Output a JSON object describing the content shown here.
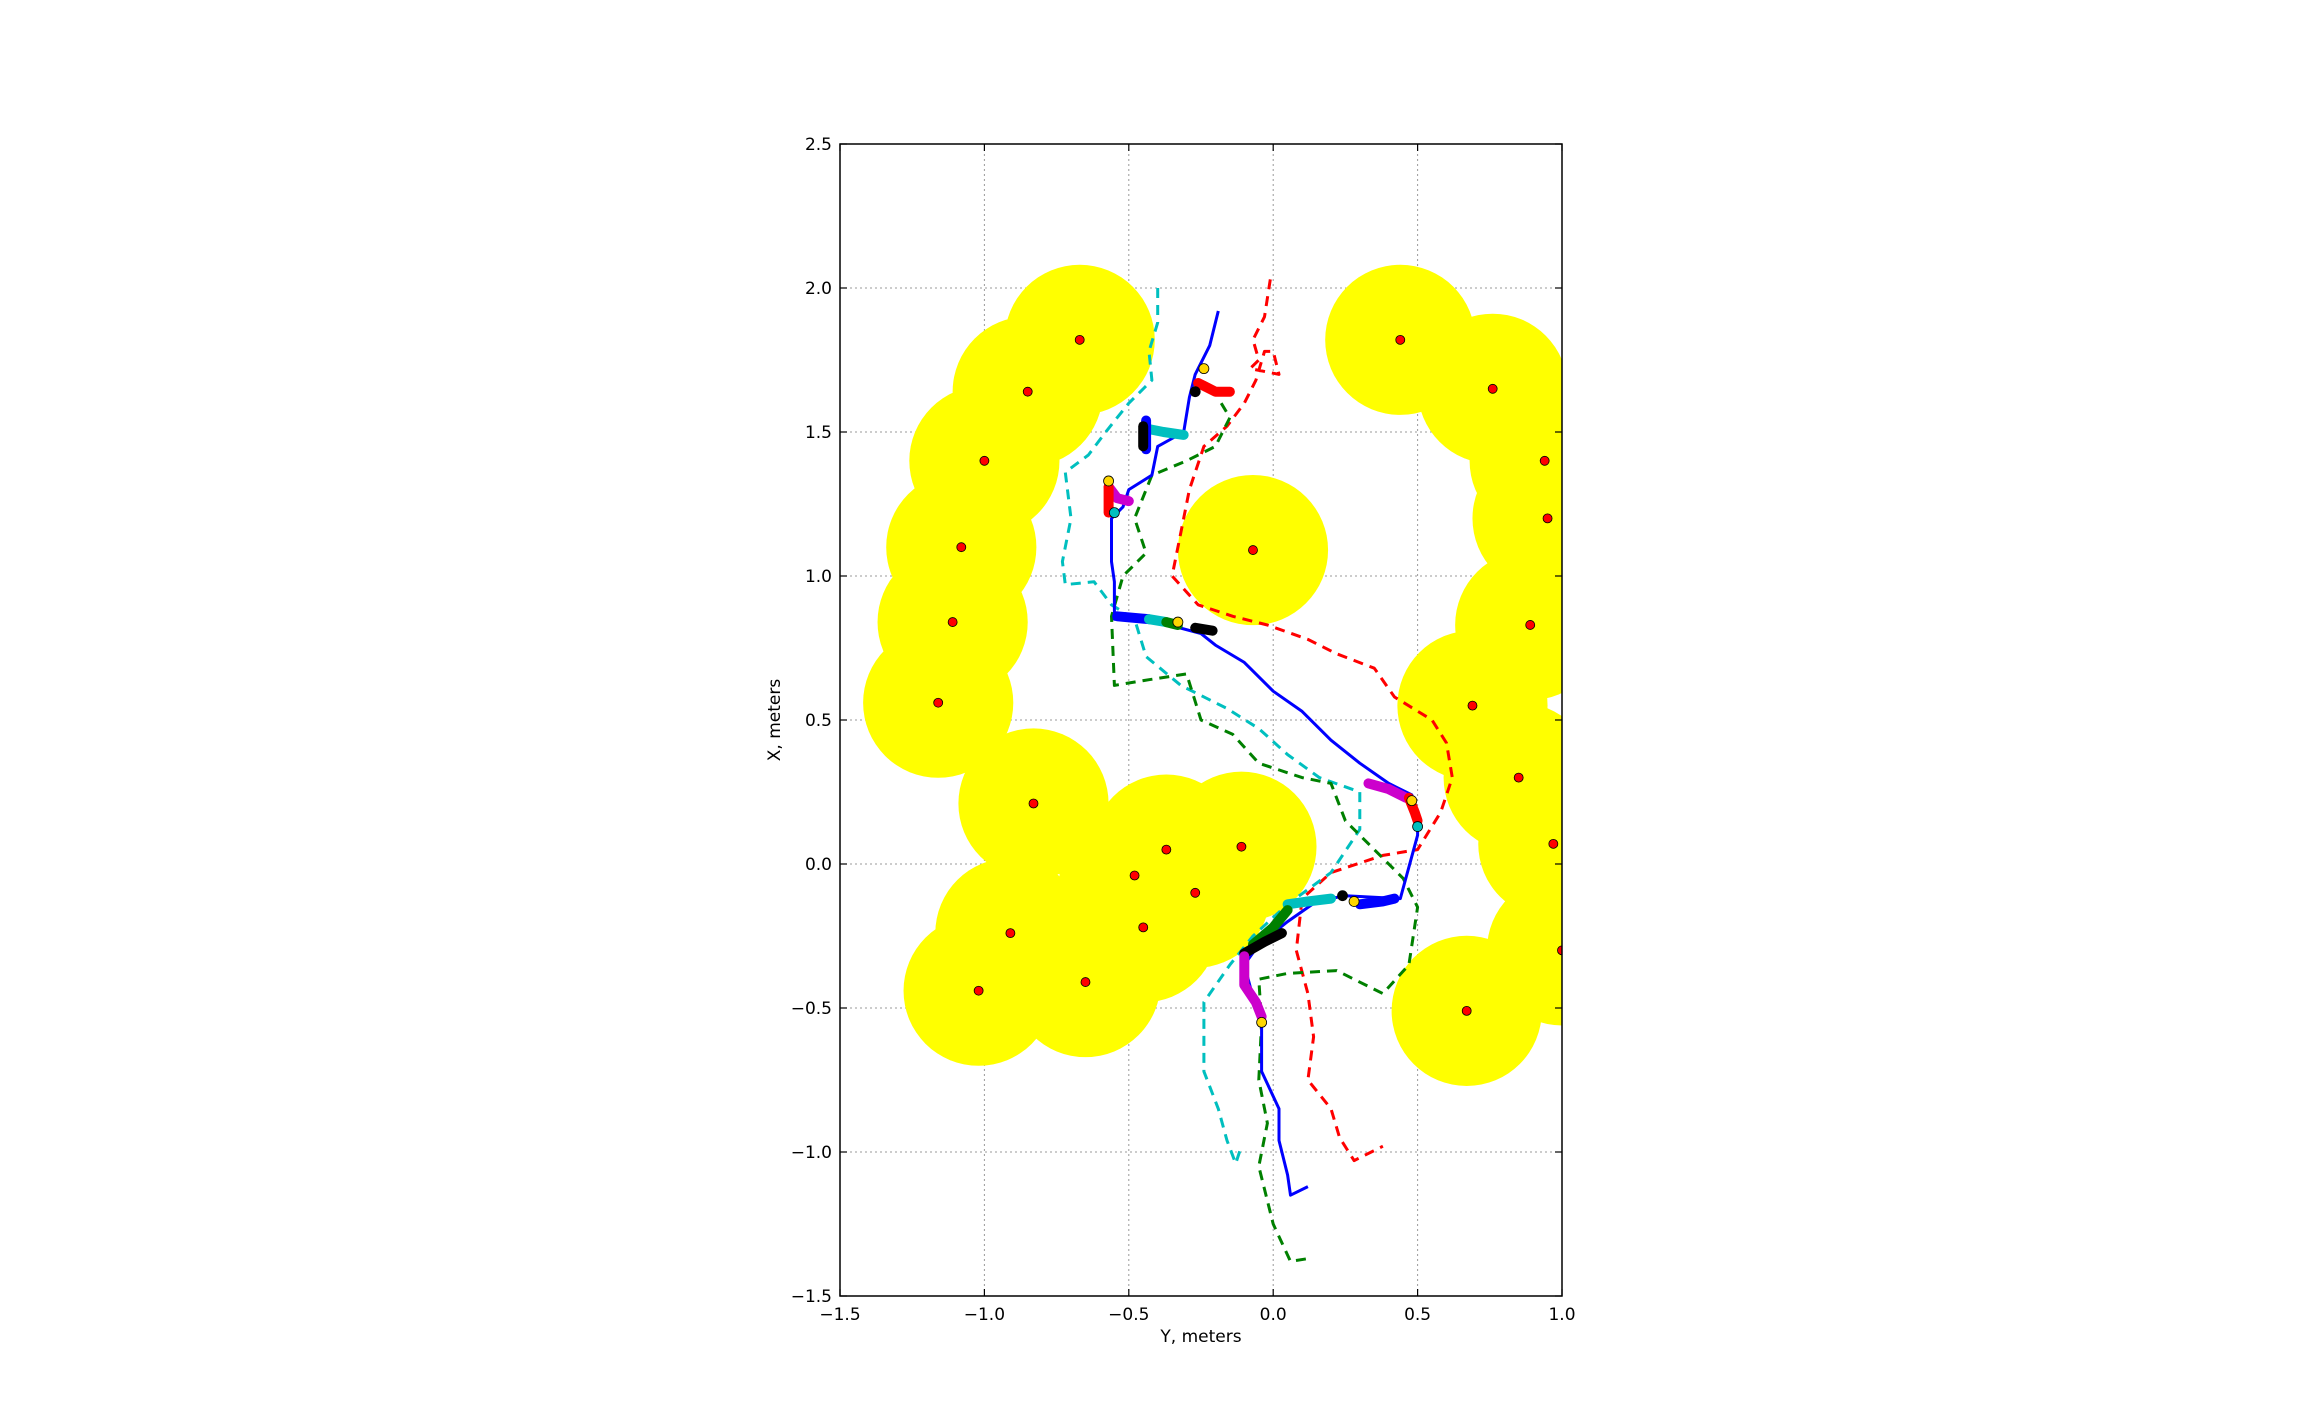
{
  "chart_data": {
    "type": "scatter",
    "xlabel": "Y, meters",
    "ylabel": "X, meters",
    "xlim": [
      -1.5,
      1.0
    ],
    "ylim": [
      -1.5,
      2.5
    ],
    "xticks": [
      -1.5,
      -1.0,
      -0.5,
      0.0,
      0.5,
      1.0
    ],
    "xtick_labels": [
      "−1.5",
      "−1.0",
      "−0.5",
      "0.0",
      "0.5",
      "1.0"
    ],
    "yticks": [
      -1.5,
      -1.0,
      -0.5,
      0.0,
      0.5,
      1.0,
      1.5,
      2.0,
      2.5
    ],
    "ytick_labels": [
      "−1.5",
      "−1.0",
      "−0.5",
      "0.0",
      "0.5",
      "1.0",
      "1.5",
      "2.0",
      "2.5"
    ],
    "grid": true,
    "obstacle_radius": 0.26,
    "obstacle_fill": "#ffff00",
    "obstacle_center_color": "#ff0000",
    "obstacles": [
      [
        -0.67,
        1.82
      ],
      [
        -0.85,
        1.64
      ],
      [
        -1.0,
        1.4
      ],
      [
        -1.08,
        1.1
      ],
      [
        -1.11,
        0.84
      ],
      [
        -1.16,
        0.56
      ],
      [
        -0.83,
        0.21
      ],
      [
        -0.37,
        0.05
      ],
      [
        -0.11,
        0.06
      ],
      [
        -0.48,
        -0.04
      ],
      [
        -0.27,
        -0.1
      ],
      [
        -0.91,
        -0.24
      ],
      [
        -0.45,
        -0.22
      ],
      [
        -1.02,
        -0.44
      ],
      [
        -0.65,
        -0.41
      ],
      [
        -0.07,
        1.09
      ],
      [
        0.44,
        1.82
      ],
      [
        0.76,
        1.65
      ],
      [
        0.94,
        1.4
      ],
      [
        0.95,
        1.2
      ],
      [
        0.89,
        0.83
      ],
      [
        0.69,
        0.55
      ],
      [
        0.85,
        0.3
      ],
      [
        0.97,
        0.07
      ],
      [
        1.0,
        -0.3
      ],
      [
        0.67,
        -0.51
      ]
    ],
    "series": [
      {
        "style": "dashed",
        "color": "#ff0000",
        "points": [
          [
            -0.01,
            2.03
          ],
          [
            -0.03,
            1.9
          ],
          [
            -0.07,
            1.82
          ],
          [
            -0.05,
            1.75
          ],
          [
            -0.08,
            1.72
          ],
          [
            0.02,
            1.7
          ],
          [
            0.0,
            1.78
          ],
          [
            -0.03,
            1.78
          ],
          [
            -0.06,
            1.68
          ],
          [
            -0.1,
            1.6
          ],
          [
            -0.16,
            1.52
          ],
          [
            -0.24,
            1.45
          ],
          [
            -0.29,
            1.3
          ],
          [
            -0.32,
            1.15
          ],
          [
            -0.35,
            1.0
          ],
          [
            -0.26,
            0.9
          ],
          [
            -0.14,
            0.86
          ],
          [
            -0.02,
            0.83
          ],
          [
            0.12,
            0.78
          ],
          [
            0.22,
            0.73
          ],
          [
            0.35,
            0.68
          ],
          [
            0.42,
            0.58
          ],
          [
            0.55,
            0.5
          ],
          [
            0.6,
            0.42
          ],
          [
            0.62,
            0.3
          ],
          [
            0.58,
            0.18
          ],
          [
            0.5,
            0.05
          ],
          [
            0.38,
            0.03
          ],
          [
            0.2,
            -0.03
          ],
          [
            0.1,
            -0.12
          ],
          [
            0.08,
            -0.3
          ],
          [
            0.12,
            -0.45
          ],
          [
            0.14,
            -0.6
          ],
          [
            0.12,
            -0.75
          ],
          [
            0.2,
            -0.85
          ],
          [
            0.23,
            -0.95
          ],
          [
            0.28,
            -1.03
          ],
          [
            0.38,
            -0.98
          ]
        ]
      },
      {
        "style": "dashed",
        "color": "#00bfbf",
        "points": [
          [
            -0.4,
            2.0
          ],
          [
            -0.4,
            1.88
          ],
          [
            -0.43,
            1.78
          ],
          [
            -0.42,
            1.68
          ],
          [
            -0.5,
            1.6
          ],
          [
            -0.58,
            1.5
          ],
          [
            -0.64,
            1.42
          ],
          [
            -0.72,
            1.36
          ],
          [
            -0.7,
            1.2
          ],
          [
            -0.73,
            1.05
          ],
          [
            -0.72,
            0.97
          ],
          [
            -0.62,
            0.98
          ],
          [
            -0.56,
            0.9
          ],
          [
            -0.48,
            0.85
          ],
          [
            -0.44,
            0.72
          ],
          [
            -0.32,
            0.62
          ],
          [
            -0.16,
            0.54
          ],
          [
            -0.05,
            0.47
          ],
          [
            0.05,
            0.38
          ],
          [
            0.16,
            0.3
          ],
          [
            0.3,
            0.25
          ],
          [
            0.3,
            0.12
          ],
          [
            0.2,
            -0.03
          ],
          [
            0.05,
            -0.14
          ],
          [
            -0.07,
            -0.25
          ],
          [
            -0.15,
            -0.35
          ],
          [
            -0.24,
            -0.48
          ],
          [
            -0.24,
            -0.72
          ],
          [
            -0.19,
            -0.85
          ],
          [
            -0.16,
            -0.96
          ],
          [
            -0.13,
            -1.04
          ],
          [
            -0.11,
            -0.98
          ]
        ]
      },
      {
        "style": "dashed",
        "color": "#008000",
        "points": [
          [
            -0.18,
            1.6
          ],
          [
            -0.15,
            1.55
          ],
          [
            -0.2,
            1.45
          ],
          [
            -0.3,
            1.4
          ],
          [
            -0.42,
            1.35
          ],
          [
            -0.48,
            1.2
          ],
          [
            -0.44,
            1.08
          ],
          [
            -0.52,
            1.0
          ],
          [
            -0.56,
            0.86
          ],
          [
            -0.55,
            0.62
          ],
          [
            -0.43,
            0.64
          ],
          [
            -0.3,
            0.66
          ],
          [
            -0.25,
            0.5
          ],
          [
            -0.14,
            0.45
          ],
          [
            -0.05,
            0.35
          ],
          [
            0.1,
            0.3
          ],
          [
            0.2,
            0.28
          ],
          [
            0.25,
            0.15
          ],
          [
            0.35,
            0.05
          ],
          [
            0.45,
            -0.05
          ],
          [
            0.5,
            -0.15
          ],
          [
            0.47,
            -0.35
          ],
          [
            0.38,
            -0.45
          ],
          [
            0.22,
            -0.37
          ],
          [
            0.05,
            -0.38
          ],
          [
            -0.05,
            -0.4
          ],
          [
            -0.04,
            -0.55
          ],
          [
            -0.05,
            -0.75
          ],
          [
            -0.02,
            -0.9
          ],
          [
            -0.05,
            -1.05
          ],
          [
            0.0,
            -1.25
          ],
          [
            0.06,
            -1.38
          ],
          [
            0.12,
            -1.37
          ]
        ]
      },
      {
        "style": "solid",
        "color": "#0000ff",
        "points": [
          [
            -0.19,
            1.92
          ],
          [
            -0.22,
            1.8
          ],
          [
            -0.27,
            1.7
          ],
          [
            -0.29,
            1.62
          ],
          [
            -0.31,
            1.5
          ],
          [
            -0.4,
            1.45
          ],
          [
            -0.42,
            1.35
          ],
          [
            -0.5,
            1.3
          ],
          [
            -0.52,
            1.24
          ],
          [
            -0.56,
            1.2
          ],
          [
            -0.56,
            1.05
          ],
          [
            -0.55,
            0.98
          ],
          [
            -0.55,
            0.85
          ],
          [
            -0.48,
            0.85
          ],
          [
            -0.36,
            0.83
          ],
          [
            -0.25,
            0.8
          ],
          [
            -0.2,
            0.76
          ],
          [
            -0.1,
            0.7
          ],
          [
            0.0,
            0.6
          ],
          [
            0.1,
            0.53
          ],
          [
            0.2,
            0.43
          ],
          [
            0.3,
            0.35
          ],
          [
            0.4,
            0.28
          ],
          [
            0.48,
            0.24
          ],
          [
            0.5,
            0.18
          ],
          [
            0.5,
            0.1
          ],
          [
            0.44,
            -0.12
          ],
          [
            0.25,
            -0.11
          ],
          [
            0.15,
            -0.13
          ],
          [
            0.05,
            -0.2
          ],
          [
            -0.05,
            -0.28
          ],
          [
            -0.1,
            -0.35
          ],
          [
            -0.06,
            -0.5
          ],
          [
            -0.04,
            -0.55
          ],
          [
            -0.04,
            -0.72
          ],
          [
            0.02,
            -0.85
          ],
          [
            0.02,
            -0.96
          ],
          [
            0.05,
            -1.08
          ],
          [
            0.06,
            -1.15
          ],
          [
            0.12,
            -1.12
          ]
        ]
      }
    ],
    "highlight_segments": [
      {
        "color": "#ff0000",
        "points": [
          [
            -0.26,
            1.67
          ],
          [
            -0.24,
            1.66
          ],
          [
            -0.2,
            1.64
          ],
          [
            -0.15,
            1.64
          ]
        ]
      },
      {
        "color": "#00bfbf",
        "points": [
          [
            -0.43,
            1.51
          ],
          [
            -0.38,
            1.5
          ],
          [
            -0.31,
            1.49
          ]
        ]
      },
      {
        "color": "#0000ff",
        "points": [
          [
            -0.44,
            1.54
          ],
          [
            -0.44,
            1.44
          ]
        ]
      },
      {
        "color": "#000000",
        "points": [
          [
            -0.45,
            1.52
          ],
          [
            -0.45,
            1.45
          ]
        ]
      },
      {
        "color": "#cc00cc",
        "points": [
          [
            -0.57,
            1.31
          ],
          [
            -0.54,
            1.27
          ],
          [
            -0.5,
            1.26
          ]
        ]
      },
      {
        "color": "#ff0000",
        "points": [
          [
            -0.57,
            1.31
          ],
          [
            -0.57,
            1.22
          ]
        ]
      },
      {
        "color": "#0000ff",
        "points": [
          [
            -0.54,
            0.86
          ],
          [
            -0.43,
            0.85
          ]
        ]
      },
      {
        "color": "#00bfbf",
        "points": [
          [
            -0.43,
            0.85
          ],
          [
            -0.37,
            0.84
          ]
        ]
      },
      {
        "color": "#008000",
        "points": [
          [
            -0.37,
            0.84
          ],
          [
            -0.33,
            0.83
          ]
        ]
      },
      {
        "color": "#000000",
        "points": [
          [
            -0.27,
            0.82
          ],
          [
            -0.21,
            0.81
          ]
        ]
      },
      {
        "color": "#cc00cc",
        "points": [
          [
            0.33,
            0.28
          ],
          [
            0.4,
            0.26
          ],
          [
            0.46,
            0.23
          ]
        ]
      },
      {
        "color": "#ff0000",
        "points": [
          [
            0.47,
            0.23
          ],
          [
            0.49,
            0.18
          ],
          [
            0.5,
            0.15
          ]
        ]
      },
      {
        "color": "#0000ff",
        "points": [
          [
            0.3,
            -0.14
          ],
          [
            0.38,
            -0.13
          ],
          [
            0.42,
            -0.12
          ]
        ]
      },
      {
        "color": "#00bfbf",
        "points": [
          [
            0.05,
            -0.14
          ],
          [
            0.12,
            -0.13
          ],
          [
            0.2,
            -0.12
          ]
        ]
      },
      {
        "color": "#008000",
        "points": [
          [
            -0.07,
            -0.28
          ],
          [
            0.0,
            -0.22
          ],
          [
            0.05,
            -0.16
          ]
        ]
      },
      {
        "color": "#000000",
        "points": [
          [
            -0.1,
            -0.31
          ],
          [
            -0.03,
            -0.27
          ],
          [
            0.03,
            -0.24
          ]
        ]
      },
      {
        "color": "#cc00cc",
        "points": [
          [
            -0.1,
            -0.32
          ],
          [
            -0.1,
            -0.42
          ],
          [
            -0.06,
            -0.48
          ],
          [
            -0.04,
            -0.53
          ]
        ]
      }
    ],
    "waypoints": [
      {
        "color": "#000000",
        "x": -0.27,
        "y": 1.64
      },
      {
        "color": "#ffd700",
        "x": -0.24,
        "y": 1.72
      },
      {
        "color": "#ffd700",
        "x": -0.57,
        "y": 1.33
      },
      {
        "color": "#00bfbf",
        "x": -0.55,
        "y": 1.22
      },
      {
        "color": "#ffd700",
        "x": -0.33,
        "y": 0.84
      },
      {
        "color": "#ffd700",
        "x": 0.48,
        "y": 0.22
      },
      {
        "color": "#00bfbf",
        "x": 0.5,
        "y": 0.13
      },
      {
        "color": "#000000",
        "x": 0.24,
        "y": -0.11
      },
      {
        "color": "#ffd700",
        "x": 0.28,
        "y": -0.13
      },
      {
        "color": "#ffd700",
        "x": -0.04,
        "y": -0.55
      }
    ]
  }
}
